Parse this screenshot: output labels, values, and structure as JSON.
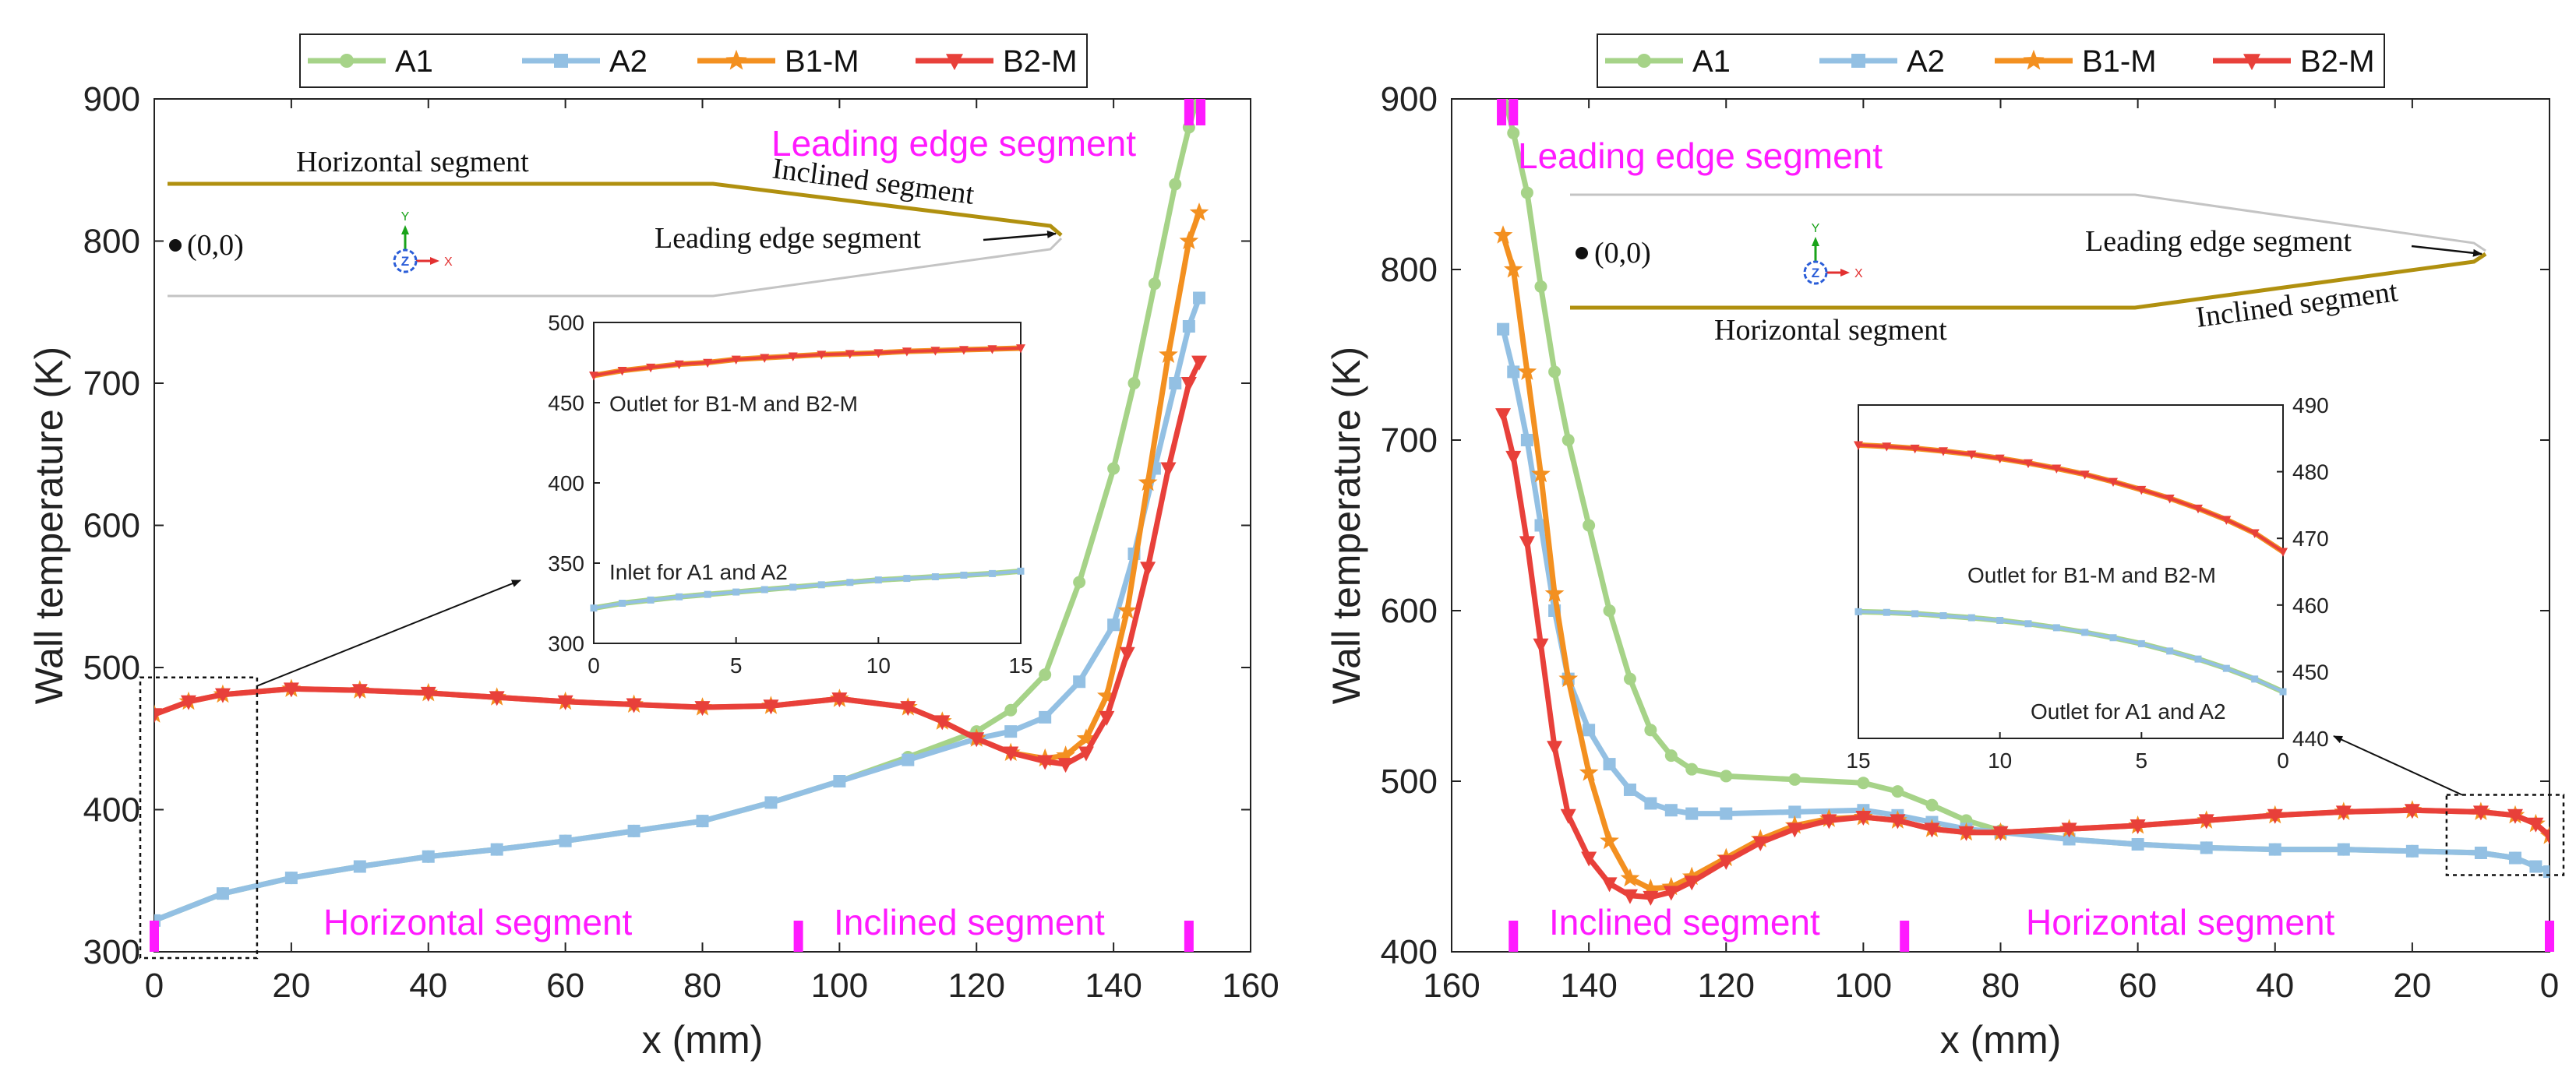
{
  "chart_data": [
    {
      "type": "line",
      "xlabel": "x (mm)",
      "ylabel": "Wall temperature (K)",
      "xlim": [
        0,
        160
      ],
      "ylim": [
        300,
        900
      ],
      "xticks": [
        0,
        20,
        40,
        60,
        80,
        100,
        120,
        140,
        160
      ],
      "yticks": [
        300,
        400,
        500,
        600,
        700,
        800,
        900
      ],
      "legend": [
        "A1",
        "A2",
        "B1-M",
        "B2-M"
      ],
      "segment_labels": [
        "Leading edge segment",
        "Horizontal segment",
        "Inclined segment"
      ],
      "geometry_labels": {
        "horizontal": "Horizontal segment",
        "inclined": "Inclined segment",
        "leading": "Leading edge segment",
        "origin": "(0,0)"
      },
      "segment_boundaries": [
        0,
        94,
        151,
        152.5
      ],
      "series": [
        {
          "name": "A1",
          "color": "#a6d388",
          "marker": "circle",
          "x": [
            0,
            10,
            20,
            30,
            40,
            50,
            60,
            70,
            80,
            90,
            100,
            110,
            120,
            125,
            130,
            135,
            140,
            143,
            146,
            149,
            151,
            152.5
          ],
          "y": [
            322,
            341,
            352,
            360,
            367,
            372,
            378,
            385,
            392,
            405,
            420,
            437,
            455,
            470,
            495,
            560,
            640,
            700,
            770,
            840,
            880,
            905
          ]
        },
        {
          "name": "A2",
          "color": "#93c0e3",
          "marker": "square",
          "x": [
            0,
            10,
            20,
            30,
            40,
            50,
            60,
            70,
            80,
            90,
            100,
            110,
            120,
            125,
            130,
            135,
            140,
            143,
            146,
            149,
            151,
            152.5
          ],
          "y": [
            322,
            341,
            352,
            360,
            367,
            372,
            378,
            385,
            392,
            405,
            420,
            435,
            450,
            455,
            465,
            490,
            530,
            580,
            640,
            700,
            740,
            760
          ]
        },
        {
          "name": "B1-M",
          "color": "#f39020",
          "marker": "star",
          "x": [
            0,
            5,
            10,
            20,
            30,
            40,
            50,
            60,
            70,
            80,
            90,
            100,
            110,
            115,
            120,
            125,
            130,
            133,
            136,
            139,
            142,
            145,
            148,
            151,
            152.5
          ],
          "y": [
            467,
            476,
            481,
            485,
            484,
            482,
            479,
            476,
            474,
            472,
            473,
            478,
            472,
            462,
            450,
            440,
            436,
            438,
            450,
            480,
            540,
            630,
            720,
            800,
            820
          ]
        },
        {
          "name": "B2-M",
          "color": "#e8403a",
          "marker": "triangle-down",
          "x": [
            0,
            5,
            10,
            20,
            30,
            40,
            50,
            60,
            70,
            80,
            90,
            100,
            110,
            115,
            120,
            125,
            130,
            133,
            136,
            139,
            142,
            145,
            148,
            151,
            152.5
          ],
          "y": [
            467,
            476,
            481,
            485,
            484,
            482,
            479,
            476,
            474,
            472,
            473,
            478,
            472,
            462,
            450,
            440,
            434,
            432,
            440,
            465,
            510,
            570,
            640,
            700,
            715
          ]
        }
      ],
      "inset": {
        "xlim": [
          0,
          15
        ],
        "ylim": [
          300,
          500
        ],
        "xticks": [
          0,
          5,
          10,
          15
        ],
        "yticks": [
          300,
          350,
          400,
          450,
          500
        ],
        "label_top": "Outlet for B1-M and B2-M",
        "label_bottom": "Inlet for A1 and A2",
        "series": [
          {
            "name": "B",
            "x": [
              0,
              1,
              2,
              3,
              4,
              5,
              6,
              7,
              8,
              9,
              10,
              11,
              12,
              13,
              14,
              15
            ],
            "y": [
              467,
              470,
              472,
              474,
              475,
              477,
              478,
              479,
              480,
              480.5,
              481,
              482,
              482.5,
              483,
              483.5,
              484
            ]
          },
          {
            "name": "A",
            "x": [
              0,
              1,
              2,
              3,
              4,
              5,
              6,
              7,
              8,
              9,
              10,
              11,
              12,
              13,
              14,
              15
            ],
            "y": [
              322,
              325,
              327,
              329,
              330.5,
              332,
              333.5,
              335,
              336.5,
              338,
              339.5,
              340.5,
              341.5,
              342.5,
              343.5,
              345
            ]
          }
        ]
      }
    },
    {
      "type": "line",
      "xlabel": "x (mm)",
      "ylabel": "Wall temperature (K)",
      "xlim": [
        160,
        0
      ],
      "ylim": [
        400,
        900
      ],
      "xticks": [
        160,
        140,
        120,
        100,
        80,
        60,
        40,
        20,
        0
      ],
      "yticks": [
        400,
        500,
        600,
        700,
        800,
        900
      ],
      "legend": [
        "A1",
        "A2",
        "B1-M",
        "B2-M"
      ],
      "segment_labels": [
        "Leading edge segment",
        "Inclined segment",
        "Horizontal segment"
      ],
      "geometry_labels": {
        "horizontal": "Horizontal segment",
        "inclined": "Inclined segment",
        "leading": "Leading edge segment",
        "origin": "(0,0)"
      },
      "segment_boundaries": [
        152.5,
        151,
        94,
        0
      ],
      "series": [
        {
          "name": "A1",
          "color": "#a6d388",
          "marker": "circle",
          "x": [
            152.5,
            151,
            149,
            147,
            145,
            143,
            140,
            137,
            134,
            131,
            128,
            125,
            120,
            110,
            100,
            95,
            90,
            85,
            80,
            70,
            60,
            50,
            40,
            30,
            20,
            10,
            5,
            2,
            0
          ],
          "y": [
            905,
            880,
            845,
            790,
            740,
            700,
            650,
            600,
            560,
            530,
            515,
            507,
            503,
            501,
            499,
            494,
            486,
            477,
            471,
            466,
            463,
            461,
            460,
            460,
            459,
            458,
            455,
            450,
            447
          ]
        },
        {
          "name": "A2",
          "color": "#93c0e3",
          "marker": "square",
          "x": [
            152.5,
            151,
            149,
            147,
            145,
            143,
            140,
            137,
            134,
            131,
            128,
            125,
            120,
            110,
            100,
            95,
            90,
            85,
            80,
            70,
            60,
            50,
            40,
            30,
            20,
            10,
            5,
            2,
            0
          ],
          "y": [
            765,
            740,
            700,
            650,
            600,
            560,
            530,
            510,
            495,
            487,
            483,
            481,
            481,
            482,
            483,
            480,
            476,
            472,
            470,
            466,
            463,
            461,
            460,
            460,
            459,
            458,
            455,
            450,
            447
          ]
        },
        {
          "name": "B1-M",
          "color": "#f39020",
          "marker": "star",
          "x": [
            152.5,
            151,
            149,
            147,
            145,
            143,
            140,
            137,
            134,
            131,
            128,
            125,
            120,
            115,
            110,
            105,
            100,
            95,
            90,
            85,
            80,
            70,
            60,
            50,
            40,
            30,
            20,
            10,
            5,
            2,
            0
          ],
          "y": [
            820,
            800,
            740,
            680,
            610,
            560,
            505,
            465,
            443,
            437,
            438,
            444,
            455,
            466,
            474,
            478,
            479,
            477,
            472,
            470,
            470,
            472,
            474,
            477,
            480,
            482,
            483,
            482,
            480,
            475,
            468
          ]
        },
        {
          "name": "B2-M",
          "color": "#e8403a",
          "marker": "triangle-down",
          "x": [
            152.5,
            151,
            149,
            147,
            145,
            143,
            140,
            137,
            134,
            131,
            128,
            125,
            120,
            115,
            110,
            105,
            100,
            95,
            90,
            85,
            80,
            70,
            60,
            50,
            40,
            30,
            20,
            10,
            5,
            2,
            0
          ],
          "y": [
            715,
            690,
            640,
            580,
            520,
            480,
            455,
            440,
            433,
            432,
            435,
            441,
            453,
            464,
            472,
            477,
            479,
            477,
            472,
            470,
            470,
            472,
            474,
            477,
            480,
            482,
            483,
            482,
            480,
            475,
            468
          ]
        }
      ],
      "inset": {
        "xlim": [
          15,
          0
        ],
        "ylim": [
          440,
          490
        ],
        "xticks": [
          15,
          10,
          5,
          0
        ],
        "yticks": [
          440,
          450,
          460,
          470,
          480,
          490
        ],
        "label_top": "Outlet for B1-M and B2-M",
        "label_bottom": "Outlet for A1 and A2",
        "series": [
          {
            "name": "B",
            "x": [
              15,
              14,
              13,
              12,
              11,
              10,
              9,
              8,
              7,
              6,
              5,
              4,
              3,
              2,
              1,
              0
            ],
            "y": [
              484,
              483.8,
              483.5,
              483.1,
              482.6,
              482,
              481.3,
              480.5,
              479.6,
              478.5,
              477.3,
              476,
              474.5,
              472.8,
              470.8,
              468
            ]
          },
          {
            "name": "A",
            "x": [
              15,
              14,
              13,
              12,
              11,
              10,
              9,
              8,
              7,
              6,
              5,
              4,
              3,
              2,
              1,
              0
            ],
            "y": [
              459,
              458.9,
              458.7,
              458.4,
              458.1,
              457.7,
              457.2,
              456.6,
              455.9,
              455.1,
              454.2,
              453.1,
              451.9,
              450.5,
              448.9,
              447
            ]
          }
        ]
      }
    }
  ]
}
